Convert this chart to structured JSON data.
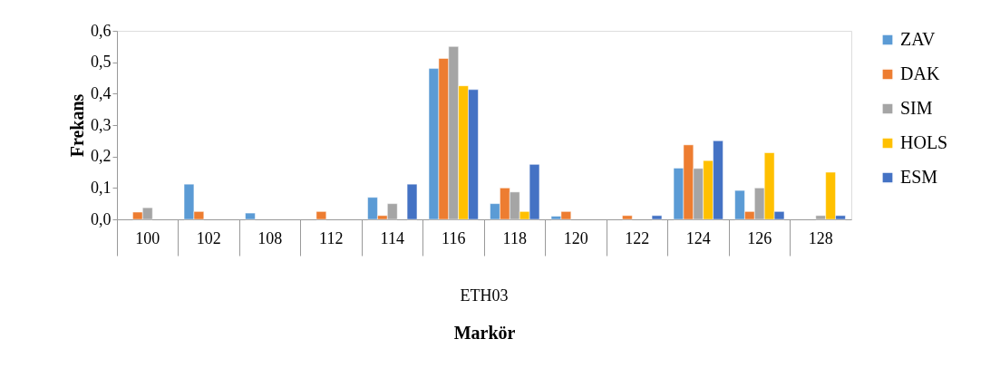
{
  "chart_data": {
    "type": "bar",
    "xlabel": "Markör",
    "ylabel": "Frekans",
    "annotations": [
      "ETH03"
    ],
    "categories": [
      "100",
      "102",
      "108",
      "112",
      "114",
      "116",
      "118",
      "120",
      "122",
      "124",
      "126",
      "128"
    ],
    "series": [
      {
        "name": "ZAV",
        "color": "#5b9bd5",
        "values": [
          null,
          0.112,
          0.02,
          null,
          0.07,
          0.48,
          0.05,
          0.01,
          null,
          0.163,
          0.092,
          null
        ]
      },
      {
        "name": "DAK",
        "color": "#ed7d31",
        "values": [
          0.023,
          0.025,
          null,
          0.025,
          0.012,
          0.512,
          0.1,
          0.025,
          0.012,
          0.237,
          0.025,
          null
        ]
      },
      {
        "name": "SIM",
        "color": "#a5a5a5",
        "values": [
          0.037,
          null,
          null,
          null,
          0.05,
          0.55,
          0.087,
          null,
          null,
          0.162,
          0.1,
          0.012
        ]
      },
      {
        "name": "HOLS",
        "color": "#ffc000",
        "values": [
          null,
          null,
          null,
          null,
          null,
          0.425,
          0.025,
          null,
          null,
          0.187,
          0.212,
          0.15
        ]
      },
      {
        "name": "ESM",
        "color": "#4472c4",
        "values": [
          null,
          null,
          null,
          null,
          0.112,
          0.413,
          0.175,
          null,
          0.012,
          0.25,
          0.025,
          0.012
        ]
      }
    ],
    "ylim": [
      0,
      0.6
    ],
    "yticks": [
      {
        "value": 0,
        "label": "0,0"
      },
      {
        "value": 0.1,
        "label": "0,1"
      },
      {
        "value": 0.2,
        "label": "0,2"
      },
      {
        "value": 0.3,
        "label": "0,3"
      },
      {
        "value": 0.4,
        "label": "0,4"
      },
      {
        "value": 0.5,
        "label": "0,5"
      },
      {
        "value": 0.6,
        "label": "0,6"
      }
    ],
    "grid": false,
    "legend": "right"
  }
}
